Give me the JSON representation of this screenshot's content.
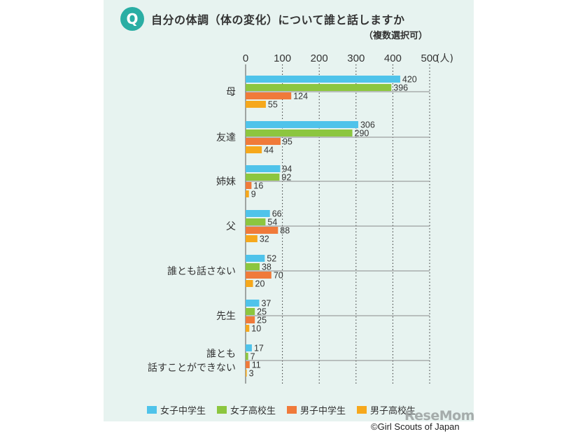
{
  "header": {
    "q_label": "Q",
    "title": "自分の体調（体の変化）について誰と話しますか",
    "subtitle": "（複数選択可）"
  },
  "chart_data": {
    "type": "bar",
    "orientation": "horizontal",
    "x_axis_ticks": [
      "0",
      "100",
      "200",
      "300",
      "400",
      "500"
    ],
    "x_unit": "(人)",
    "xlim": [
      0,
      500
    ],
    "categories": [
      "母",
      "友達",
      "姉妹",
      "父",
      "誰とも話さない",
      "先生",
      "誰とも\n話すことができない"
    ],
    "series": [
      {
        "name": "女子中学生",
        "color": "#4fc3ea",
        "values": [
          420,
          306,
          94,
          66,
          52,
          37,
          17
        ]
      },
      {
        "name": "女子高校生",
        "color": "#8cc63f",
        "values": [
          396,
          290,
          92,
          54,
          38,
          25,
          7
        ]
      },
      {
        "name": "男子中学生",
        "color": "#f07a3a",
        "values": [
          124,
          95,
          16,
          88,
          70,
          25,
          11
        ]
      },
      {
        "name": "男子高校生",
        "color": "#f6a81c",
        "values": [
          55,
          44,
          9,
          32,
          20,
          10,
          3
        ]
      }
    ],
    "grid": true,
    "legend": "bottom"
  },
  "footer": {
    "watermark": "ReseMom",
    "copyright": "©Girl Scouts of Japan"
  }
}
